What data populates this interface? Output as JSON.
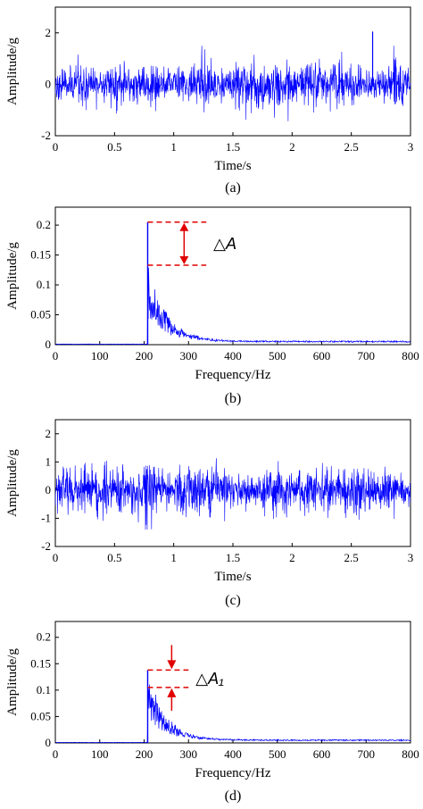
{
  "chart_data": [
    {
      "id": "a",
      "type": "line",
      "caption": "(a)",
      "xlabel": "Time/s",
      "ylabel": "Amplitude/g",
      "xlim": [
        0,
        3
      ],
      "ylim": [
        -2,
        3
      ],
      "xticks": [
        "0",
        "0.5",
        "1",
        "1.5",
        "2",
        "2.5",
        "3"
      ],
      "yticks": [
        "-2",
        "0",
        "2"
      ],
      "color": "#0000ff",
      "signal": {
        "kind": "vibration",
        "rms": 0.38,
        "peak_clip": 1.5,
        "seed": 11,
        "spike": {
          "x": 2.68,
          "y": 2.05
        }
      }
    },
    {
      "id": "b",
      "type": "line",
      "caption": "(b)",
      "xlabel": "Frequency/Hz",
      "ylabel": "Amplitude/g",
      "xlim": [
        0,
        800
      ],
      "ylim": [
        0,
        0.23
      ],
      "xticks": [
        "0",
        "100",
        "200",
        "300",
        "400",
        "500",
        "600",
        "700",
        "800"
      ],
      "yticks": [
        "0",
        "0.05",
        "0.1",
        "0.15",
        "0.2"
      ],
      "color": "#0000ff",
      "signal": {
        "kind": "spectrum",
        "onset": 208,
        "peak": 0.205,
        "start": 0.105,
        "decay": 42,
        "floor": 0.004,
        "seed": 5
      },
      "annotation": {
        "label": "△A",
        "upper": 0.205,
        "lower": 0.133,
        "x_from": 208,
        "x_to": 340,
        "color": "#e00000"
      }
    },
    {
      "id": "c",
      "type": "line",
      "caption": "(c)",
      "xlabel": "Time/s",
      "ylabel": "Amplitude/g",
      "xlim": [
        0,
        3
      ],
      "ylim": [
        -2,
        2.5
      ],
      "xticks": [
        "0",
        "0.5",
        "1",
        "1.5",
        "2",
        "2.5",
        "3"
      ],
      "yticks": [
        "-2",
        "-1",
        "0",
        "1",
        "2"
      ],
      "color": "#0000ff",
      "signal": {
        "kind": "vibration",
        "rms": 0.42,
        "peak_clip": 1.4,
        "seed": 23
      }
    },
    {
      "id": "d",
      "type": "line",
      "caption": "(d)",
      "xlabel": "Frequency/Hz",
      "ylabel": "Amplitude/g",
      "xlim": [
        0,
        800
      ],
      "ylim": [
        0,
        0.23
      ],
      "xticks": [
        "0",
        "100",
        "200",
        "300",
        "400",
        "500",
        "600",
        "700",
        "800"
      ],
      "yticks": [
        "0",
        "0.05",
        "0.1",
        "0.15",
        "0.2"
      ],
      "color": "#0000ff",
      "signal": {
        "kind": "spectrum",
        "onset": 208,
        "peak": 0.138,
        "start": 0.11,
        "decay": 40,
        "floor": 0.004,
        "seed": 9
      },
      "annotation": {
        "label": "△A₁",
        "upper": 0.138,
        "lower": 0.105,
        "x_from": 208,
        "x_to": 300,
        "color": "#e00000"
      }
    }
  ]
}
